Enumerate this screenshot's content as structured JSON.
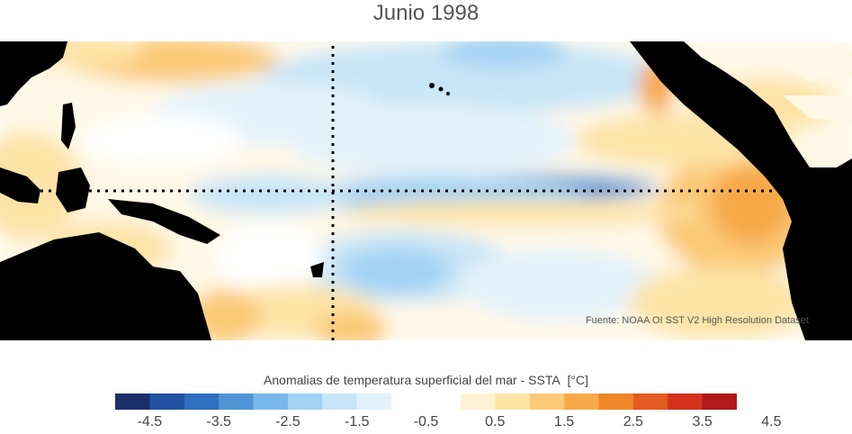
{
  "title": "Junio 1998",
  "source": "Fuente: NOAA OI SST V2 High Resolution Dataset",
  "colorbar": {
    "label": "Anomalias de temperatura superficial del mar - SSTA",
    "units": "[°C]",
    "ticks": [
      "-4.5",
      "-3.5",
      "-2.5",
      "-1.5",
      "-0.5",
      "0.5",
      "1.5",
      "2.5",
      "3.5",
      "4.5"
    ],
    "colors": [
      "#1b2f6b",
      "#2251a1",
      "#2f6fbf",
      "#4f95d6",
      "#78b7e8",
      "#a2d2f3",
      "#c8e5f7",
      "#e2f2fb",
      "#ffffff",
      "#ffffff",
      "#fff3d3",
      "#fde3a6",
      "#fbc977",
      "#f7a94a",
      "#f08729",
      "#e45a21",
      "#d3311b",
      "#b11a1a"
    ]
  },
  "colors": {
    "land": "#000000",
    "background": "#ffffff"
  }
}
